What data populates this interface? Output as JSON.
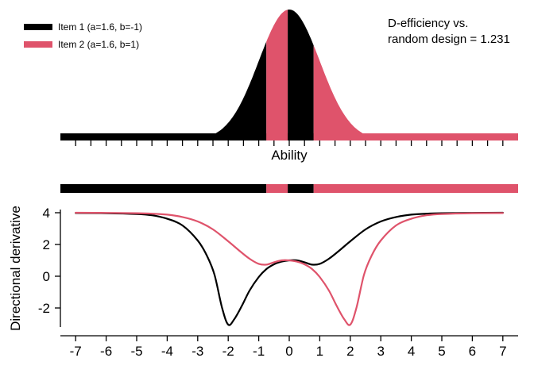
{
  "colors": {
    "background": "#ffffff",
    "item1": "#000000",
    "item2": "#df536b",
    "axis": "#000000",
    "text": "#000000"
  },
  "legend": {
    "items": [
      {
        "label": "Item 1 (a=1.6, b=-1)",
        "color_key": "item1"
      },
      {
        "label": "Item 2 (a=1.6, b=1)",
        "color_key": "item2"
      }
    ]
  },
  "annotation": {
    "line1": "D-efficiency vs.",
    "line2": "random design = 1.231"
  },
  "chart_data": [
    {
      "type": "area",
      "title": "",
      "xlabel": "Ability",
      "ylabel": "",
      "xlim": [
        -7.5,
        7.5
      ],
      "tick_min": -7,
      "tick_max": 7,
      "tick_step": 0.5,
      "bell": {
        "center": 0,
        "sd": 1,
        "peak_norm": 1
      },
      "segments": [
        {
          "from": -7.5,
          "to": -0.75,
          "item": "item1"
        },
        {
          "from": -0.75,
          "to": -0.05,
          "item": "item2"
        },
        {
          "from": -0.05,
          "to": 0.8,
          "item": "item1"
        },
        {
          "from": 0.8,
          "to": 7.5,
          "item": "item2"
        }
      ]
    },
    {
      "type": "bar",
      "title": "design strip: optimal item by ability region",
      "segments": [
        {
          "from": -7.5,
          "to": -0.75,
          "item": "item1"
        },
        {
          "from": -0.75,
          "to": -0.05,
          "item": "item2"
        },
        {
          "from": -0.05,
          "to": 0.8,
          "item": "item1"
        },
        {
          "from": 0.8,
          "to": 7.5,
          "item": "item2"
        }
      ]
    },
    {
      "type": "line",
      "title": "",
      "xlabel": "",
      "ylabel": "Directional derivative",
      "xlim": [
        -7.5,
        7.5
      ],
      "ylim": [
        -3.6,
        4.4
      ],
      "xticks": [
        -7,
        -6,
        -5,
        -4,
        -3,
        -2,
        -1,
        0,
        1,
        2,
        3,
        4,
        5,
        6,
        7
      ],
      "yticks": [
        -2,
        0,
        2,
        4
      ],
      "grid": false,
      "series": [
        {
          "name": "Item 1 (a=1.6, b=-1)",
          "color_key": "item1",
          "points": [
            [
              -7.0,
              3.98
            ],
            [
              -6.0,
              3.97
            ],
            [
              -5.0,
              3.92
            ],
            [
              -4.5,
              3.84
            ],
            [
              -4.0,
              3.62
            ],
            [
              -3.5,
              3.2
            ],
            [
              -3.0,
              2.25
            ],
            [
              -2.7,
              1.3
            ],
            [
              -2.45,
              0.1
            ],
            [
              -2.2,
              -2.0
            ],
            [
              -2.0,
              -3.05
            ],
            [
              -1.8,
              -2.7
            ],
            [
              -1.55,
              -1.85
            ],
            [
              -1.3,
              -0.9
            ],
            [
              -1.0,
              -0.05
            ],
            [
              -0.75,
              0.45
            ],
            [
              -0.5,
              0.75
            ],
            [
              -0.25,
              0.92
            ],
            [
              0.0,
              1.0
            ],
            [
              0.25,
              1.0
            ],
            [
              0.5,
              0.88
            ],
            [
              0.75,
              0.73
            ],
            [
              1.0,
              0.78
            ],
            [
              1.3,
              1.1
            ],
            [
              1.6,
              1.55
            ],
            [
              2.0,
              2.2
            ],
            [
              2.5,
              2.95
            ],
            [
              3.0,
              3.45
            ],
            [
              3.5,
              3.73
            ],
            [
              4.0,
              3.88
            ],
            [
              4.5,
              3.94
            ],
            [
              5.0,
              3.97
            ],
            [
              6.0,
              3.99
            ],
            [
              7.0,
              4.0
            ]
          ]
        },
        {
          "name": "Item 2 (a=1.6, b=1)",
          "color_key": "item2",
          "points": [
            [
              -7.0,
              4.0
            ],
            [
              -6.0,
              3.99
            ],
            [
              -5.0,
              3.97
            ],
            [
              -4.5,
              3.94
            ],
            [
              -4.0,
              3.88
            ],
            [
              -3.5,
              3.73
            ],
            [
              -3.0,
              3.45
            ],
            [
              -2.5,
              2.95
            ],
            [
              -2.0,
              2.2
            ],
            [
              -1.6,
              1.55
            ],
            [
              -1.3,
              1.1
            ],
            [
              -1.0,
              0.78
            ],
            [
              -0.75,
              0.73
            ],
            [
              -0.5,
              0.88
            ],
            [
              -0.25,
              1.0
            ],
            [
              0.0,
              1.0
            ],
            [
              0.25,
              0.92
            ],
            [
              0.5,
              0.75
            ],
            [
              0.75,
              0.45
            ],
            [
              1.0,
              -0.05
            ],
            [
              1.3,
              -0.9
            ],
            [
              1.55,
              -1.85
            ],
            [
              1.8,
              -2.7
            ],
            [
              2.0,
              -3.05
            ],
            [
              2.2,
              -2.0
            ],
            [
              2.45,
              0.1
            ],
            [
              2.7,
              1.3
            ],
            [
              3.0,
              2.25
            ],
            [
              3.5,
              3.2
            ],
            [
              4.0,
              3.62
            ],
            [
              4.5,
              3.84
            ],
            [
              5.0,
              3.92
            ],
            [
              6.0,
              3.97
            ],
            [
              7.0,
              3.98
            ]
          ]
        }
      ]
    }
  ]
}
